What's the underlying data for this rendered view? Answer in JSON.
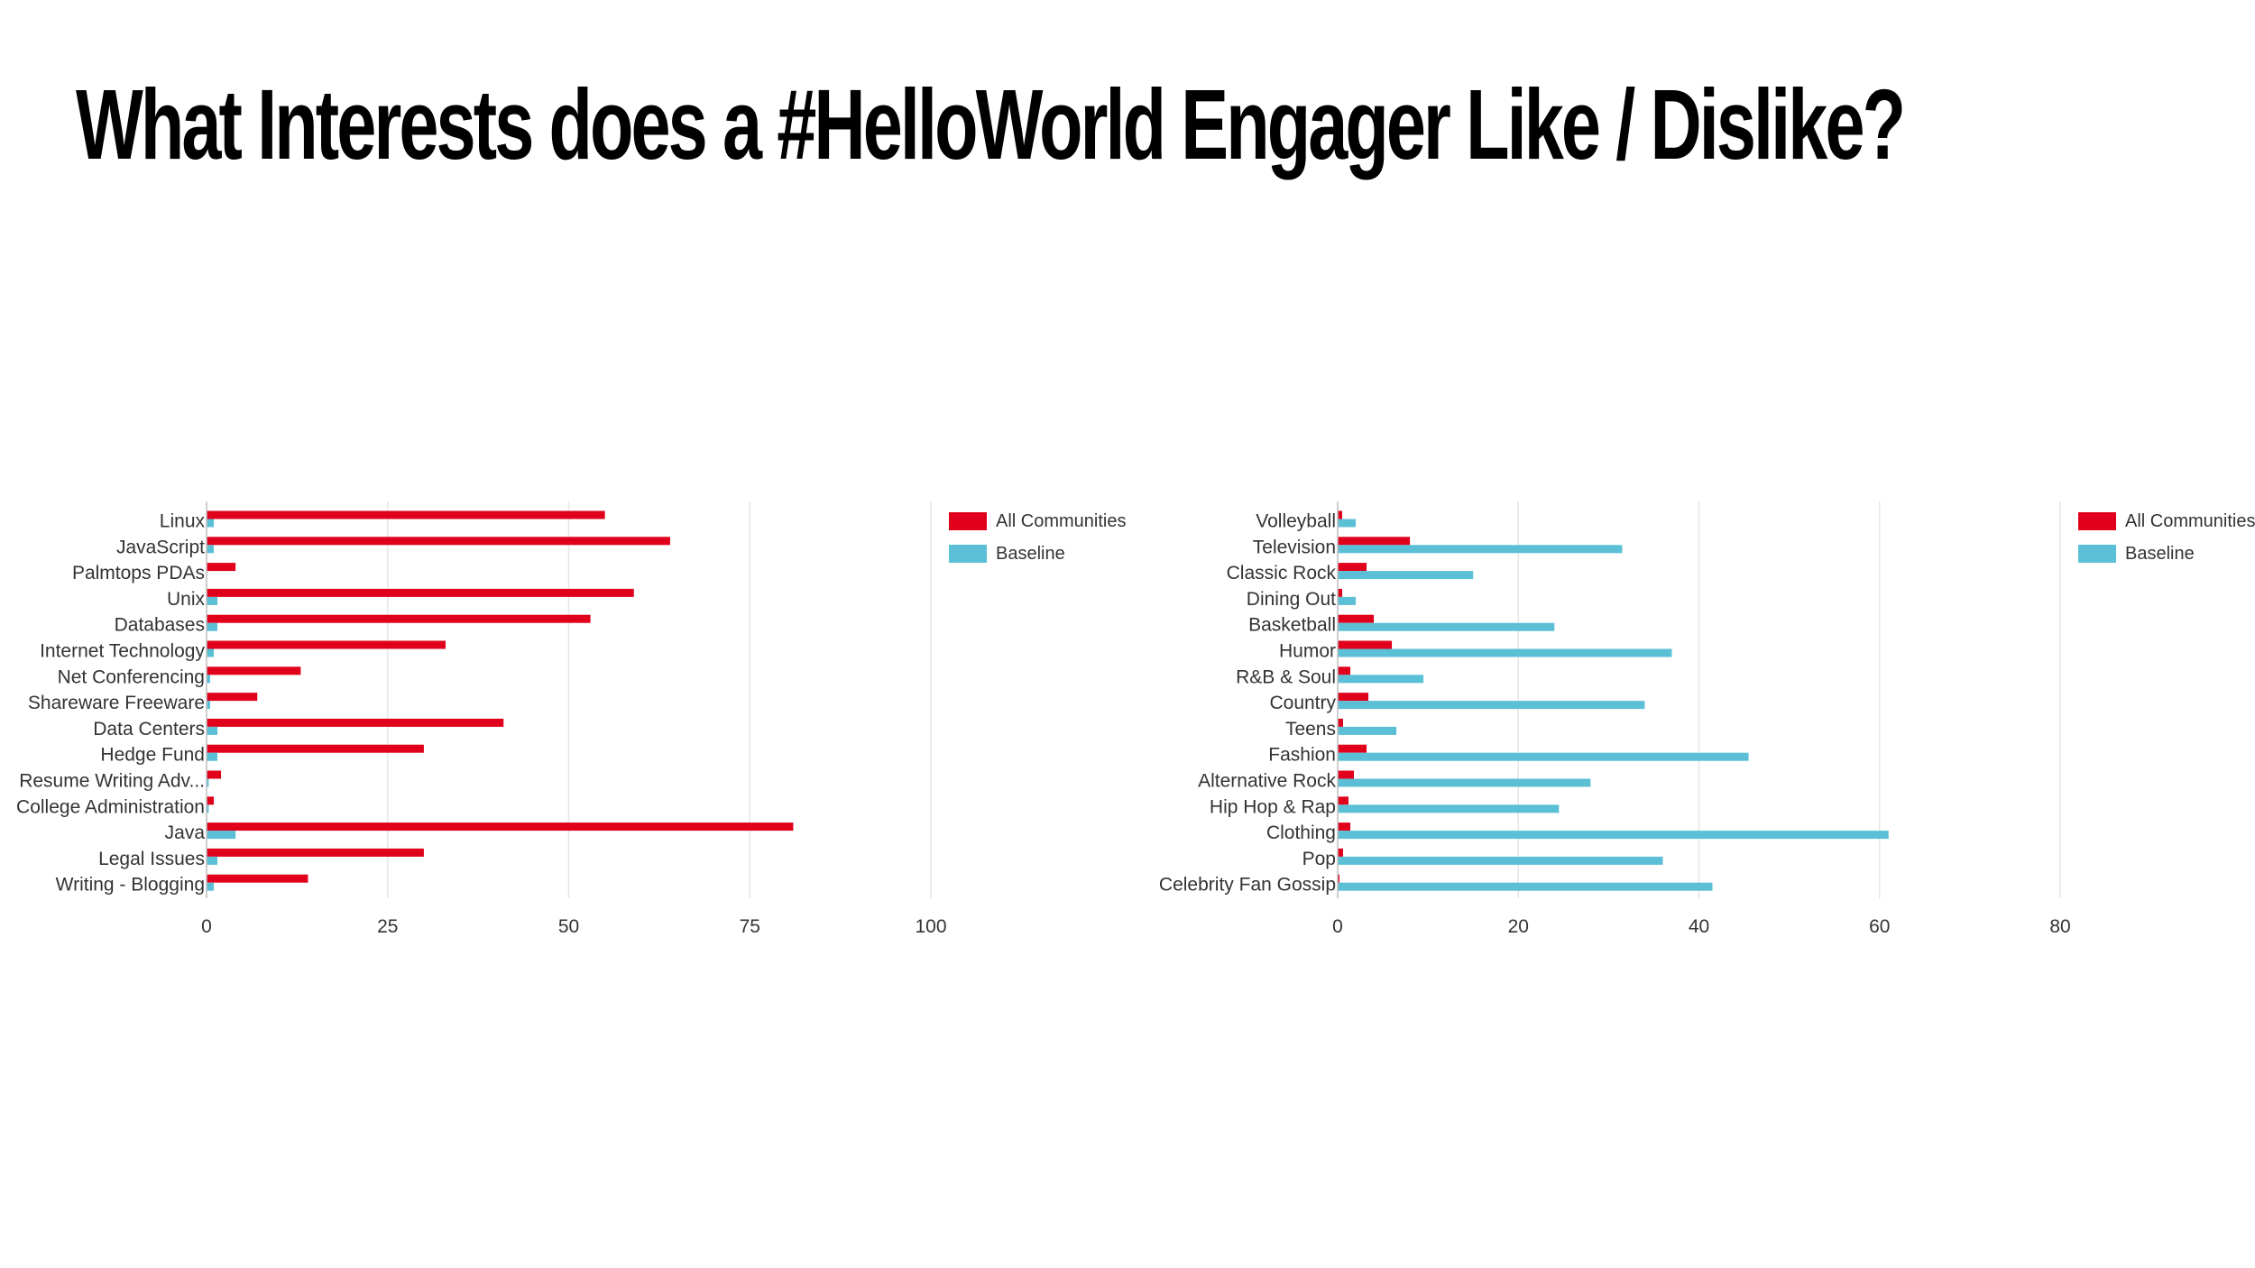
{
  "title": "What Interests does a #HelloWorld Engager Like / Dislike?",
  "colors": {
    "all_communities": "#e0001b",
    "baseline": "#5bc0d6",
    "grid": "#e6e6e6",
    "axis": "#bdbdbd",
    "text": "#333333"
  },
  "legend": {
    "all_communities": "All Communities",
    "baseline": "Baseline"
  },
  "chart_data": [
    {
      "type": "bar",
      "orientation": "horizontal",
      "categories": [
        "Linux",
        "JavaScript",
        "Palmtops PDAs",
        "Unix",
        "Databases",
        "Internet Technology",
        "Net Conferencing",
        "Shareware Freeware",
        "Data Centers",
        "Hedge Fund",
        "Resume Writing Adv...",
        "College Administration",
        "Java",
        "Legal Issues",
        "Writing - Blogging"
      ],
      "series": [
        {
          "name": "All Communities",
          "values": [
            55,
            64,
            4,
            59,
            53,
            33,
            13,
            7,
            41,
            30,
            2,
            1,
            81,
            30,
            14
          ]
        },
        {
          "name": "Baseline",
          "values": [
            1,
            1,
            0,
            1.5,
            1.5,
            1,
            0.5,
            0.5,
            1.5,
            1.5,
            0.3,
            0.3,
            4,
            1.5,
            1
          ]
        }
      ],
      "xlim": [
        0,
        100
      ],
      "xticks": [
        "0",
        "25",
        "50",
        "75",
        "100"
      ],
      "grid": true,
      "legend_position": "right"
    },
    {
      "type": "bar",
      "orientation": "horizontal",
      "categories": [
        "Volleyball",
        "Television",
        "Classic Rock",
        "Dining Out",
        "Basketball",
        "Humor",
        "R&B & Soul",
        "Country",
        "Teens",
        "Fashion",
        "Alternative Rock",
        "Hip Hop & Rap",
        "Clothing",
        "Pop",
        "Celebrity Fan Gossip"
      ],
      "series": [
        {
          "name": "All Communities",
          "values": [
            0.5,
            8,
            3.2,
            0.5,
            4,
            6,
            1.4,
            3.4,
            0.6,
            3.2,
            1.8,
            1.2,
            1.4,
            0.6,
            0.2
          ]
        },
        {
          "name": "Baseline",
          "values": [
            2,
            31.5,
            15,
            2,
            24,
            37,
            9.5,
            34,
            6.5,
            45.5,
            28,
            24.5,
            61,
            36,
            41.5
          ]
        }
      ],
      "xlim": [
        0,
        80
      ],
      "xticks": [
        "0",
        "20",
        "40",
        "60",
        "80"
      ],
      "grid": true,
      "legend_position": "right"
    }
  ]
}
